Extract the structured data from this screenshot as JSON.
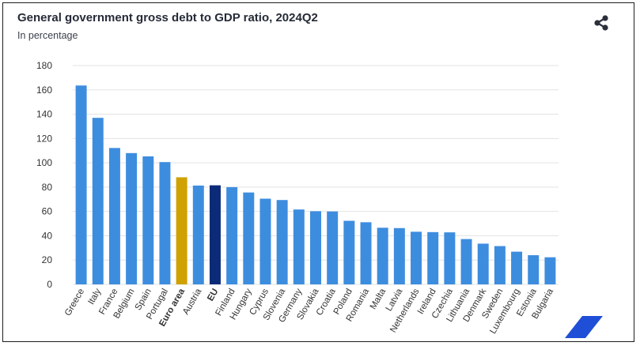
{
  "header": {
    "title": "General government gross debt to GDP ratio, 2024Q2",
    "subtitle": "In percentage"
  },
  "icons": {
    "share": "share-icon",
    "corner": "eurostat-stripe-icon"
  },
  "colors": {
    "bar": "#3d8ddf",
    "euro_area": "#cfa102",
    "eu": "#0b2b79",
    "grid": "#e3e3e3",
    "text": "#333333"
  },
  "chart_data": {
    "type": "bar",
    "title": "General government gross debt to GDP ratio, 2024Q2",
    "subtitle": "In percentage",
    "xlabel": "",
    "ylabel": "",
    "ylim": [
      0,
      180
    ],
    "yticks": [
      0,
      20,
      40,
      60,
      80,
      100,
      120,
      140,
      160,
      180
    ],
    "grid": true,
    "categories": [
      "Greece",
      "Italy",
      "France",
      "Belgium",
      "Spain",
      "Portugal",
      "Euro area",
      "Austria",
      "EU",
      "Finland",
      "Hungary",
      "Cyprus",
      "Slovenia",
      "Germany",
      "Slovakia",
      "Croatia",
      "Poland",
      "Romania",
      "Malta",
      "Latvia",
      "Netherlands",
      "Ireland",
      "Czechia",
      "Lithuania",
      "Denmark",
      "Sweden",
      "Luxembourg",
      "Estonia",
      "Bulgaria"
    ],
    "values": [
      163.6,
      137.0,
      112.2,
      108.0,
      105.3,
      100.6,
      88.1,
      81.3,
      81.5,
      80.0,
      75.6,
      70.5,
      69.4,
      61.6,
      60.2,
      60.0,
      52.3,
      51.1,
      46.6,
      46.3,
      43.3,
      43.0,
      42.8,
      37.3,
      33.5,
      31.5,
      26.9,
      24.0,
      22.3
    ],
    "highlight": {
      "Euro area": "euro_area",
      "EU": "eu"
    },
    "bold_labels": [
      "Euro area",
      "EU"
    ]
  }
}
